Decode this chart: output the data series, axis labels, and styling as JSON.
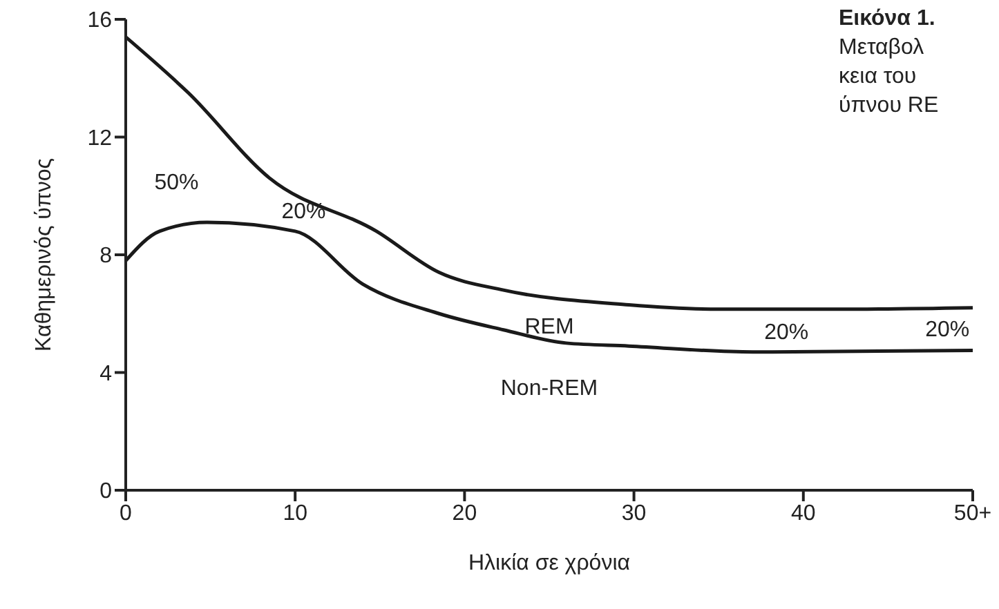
{
  "chart_data": {
    "type": "line",
    "title": "Εικόνα 1.",
    "xlabel": "Ηλικία σε χρόνια",
    "ylabel": "Καθημερινός ύπνος",
    "xlim": [
      0,
      50
    ],
    "xticks": [
      0,
      10,
      20,
      30,
      40,
      {
        "value": 50,
        "label": "50+"
      }
    ],
    "ylim": [
      0,
      16
    ],
    "yticks": [
      0,
      4,
      8,
      12,
      16
    ],
    "grid": false,
    "marker": "none",
    "line_style": "solid",
    "series": [
      {
        "color": "#1a1a1a",
        "x": [
          0,
          3.7,
          8.5,
          14.8,
          18.5,
          22.3,
          29.7,
          35,
          42,
          50
        ],
        "values": [
          15.4,
          13.5,
          10.6,
          8.8,
          7.4,
          6.8,
          6.3,
          6.15,
          6.15,
          6.2
        ]
      },
      {
        "color": "#1a1a1a",
        "x": [
          0,
          2,
          4.8,
          10,
          14,
          18.5,
          22.3,
          26,
          29.7,
          37,
          50
        ],
        "values": [
          7.8,
          8.8,
          9.1,
          8.8,
          7.0,
          6.0,
          5.45,
          5.0,
          4.9,
          4.7,
          4.75
        ]
      }
    ],
    "annotations": [
      "50%",
      "20%",
      "REM",
      "Non-REM",
      "20%",
      "20%",
      "Μεταβολ",
      "κεια του",
      "ύπνου RE"
    ]
  }
}
